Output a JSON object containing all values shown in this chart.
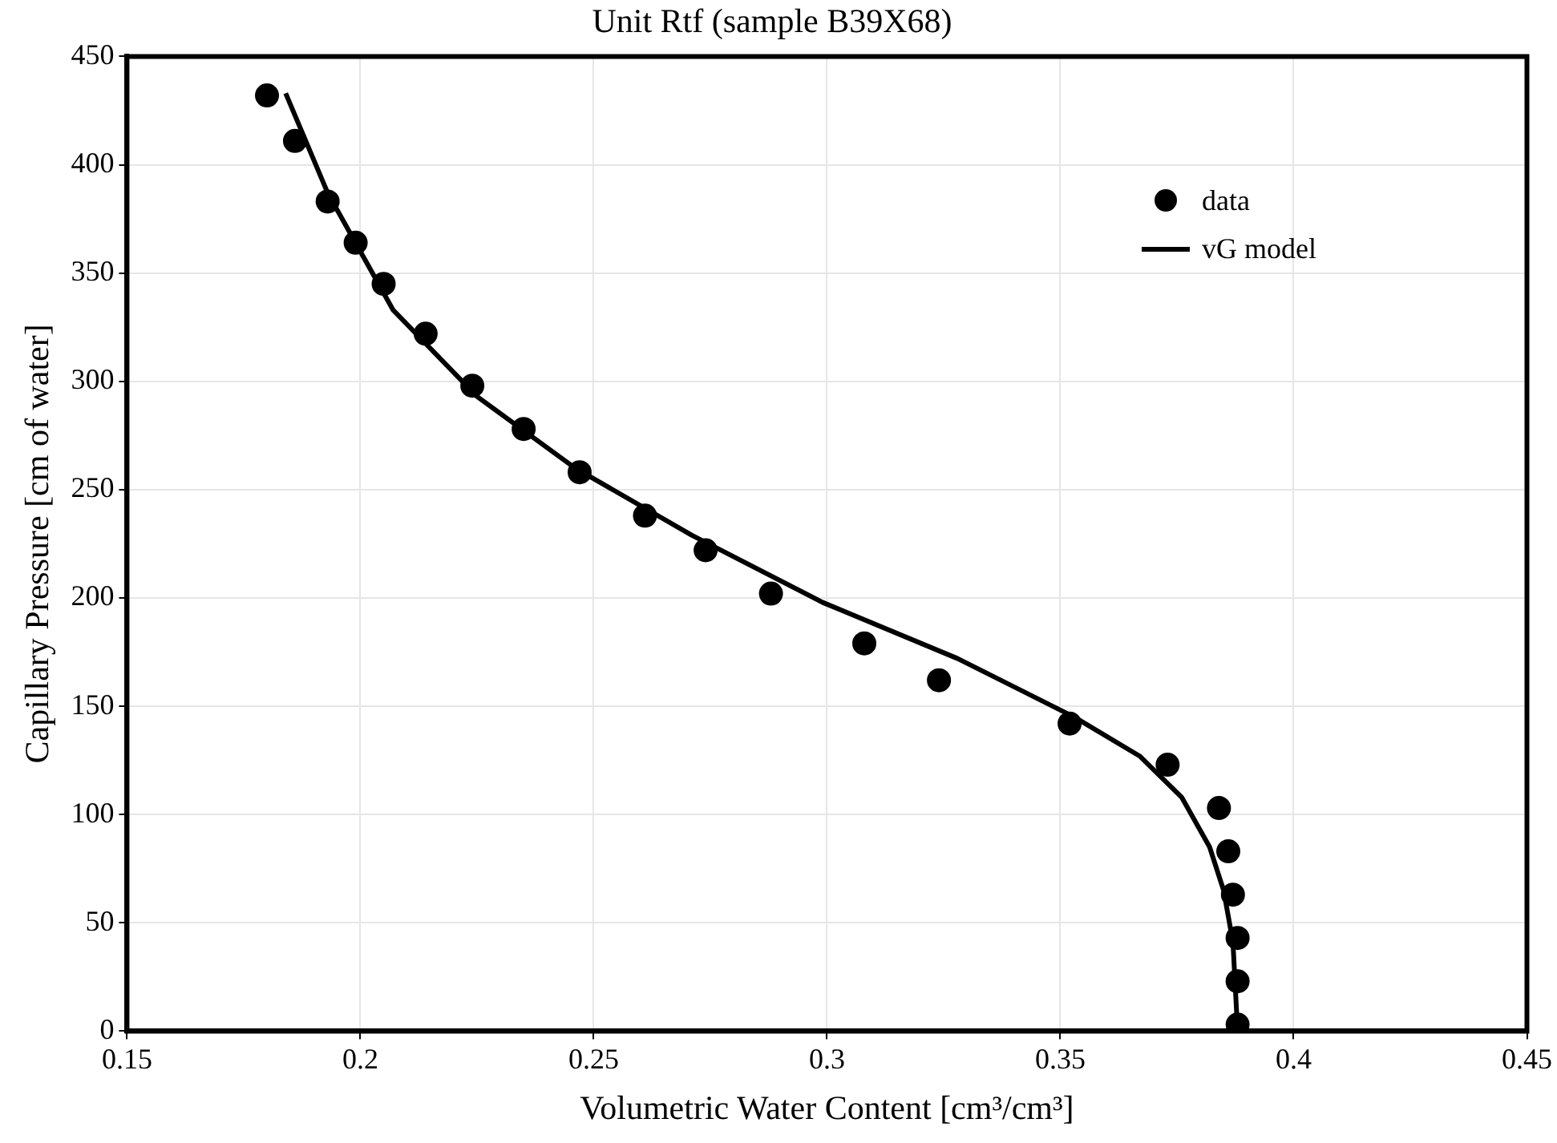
{
  "chart_data": {
    "type": "scatter",
    "title": "Unit Rtf (sample B39X68)",
    "xlabel": "Volumetric Water Content [cm³/cm³]",
    "ylabel": "Capillary Pressure [cm of water]",
    "xlim": [
      0.15,
      0.45
    ],
    "xticks": [
      0.15,
      0.2,
      0.25,
      0.3,
      0.35,
      0.4,
      0.45
    ],
    "ylim": [
      0,
      450
    ],
    "yticks": [
      0,
      50,
      100,
      150,
      200,
      250,
      300,
      350,
      400,
      450
    ],
    "grid": true,
    "legend": "top right",
    "series": [
      {
        "name": "data",
        "marker": "circle",
        "color": "#000000",
        "x": [
          0.18,
          0.186,
          0.193,
          0.199,
          0.205,
          0.214,
          0.224,
          0.235,
          0.247,
          0.261,
          0.274,
          0.288,
          0.308,
          0.324,
          0.352,
          0.373,
          0.384,
          0.386,
          0.387,
          0.388,
          0.388,
          0.388
        ],
        "values": [
          432,
          411,
          383,
          364,
          345,
          322,
          298,
          278,
          258,
          238,
          222,
          202,
          179,
          162,
          142,
          123,
          103,
          83,
          63,
          43,
          23,
          3
        ]
      },
      {
        "name": "vG model",
        "type": "line",
        "marker": "none",
        "line_style": "solid",
        "color": "#000000",
        "x": [
          0.184,
          0.193,
          0.207,
          0.225,
          0.246,
          0.271,
          0.299,
          0.328,
          0.353,
          0.367,
          0.376,
          0.382,
          0.385,
          0.387,
          0.388
        ],
        "values": [
          433,
          387,
          333,
          293,
          260,
          229,
          198,
          172,
          145,
          127,
          108,
          85,
          65,
          41,
          0
        ]
      }
    ]
  }
}
